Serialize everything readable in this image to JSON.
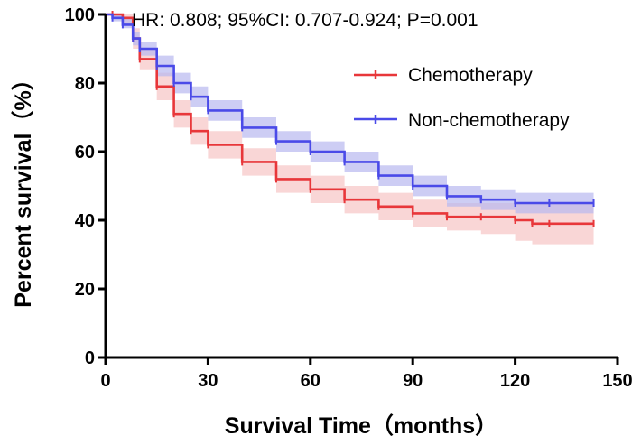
{
  "chart_data": {
    "type": "line",
    "annotation": "HR: 0.808; 95%CI: 0.707-0.924; P=0.001",
    "xlabel": "Survival Time（months）",
    "ylabel": "Percent survival（%）",
    "xlim": [
      0,
      150
    ],
    "ylim": [
      0,
      100
    ],
    "xticks": [
      0,
      30,
      60,
      90,
      120,
      150
    ],
    "yticks": [
      0,
      20,
      40,
      60,
      80,
      100
    ],
    "grid": false,
    "legend_position": "top-right",
    "series": [
      {
        "name": "Chemotherapy",
        "color": "#e8373a",
        "band_color": "#f7c4c4",
        "x": [
          0,
          2,
          5,
          8,
          10,
          15,
          20,
          25,
          30,
          40,
          50,
          60,
          70,
          80,
          90,
          100,
          110,
          120,
          125,
          130,
          143
        ],
        "y": [
          100,
          100,
          99,
          93,
          87,
          79,
          71,
          66,
          62,
          57,
          52,
          49,
          46,
          44,
          42,
          41,
          41,
          40,
          39,
          39,
          39
        ],
        "ci_lower": [
          100,
          99,
          97,
          90,
          84,
          75,
          67,
          62,
          58,
          53,
          48,
          45,
          42,
          40,
          38,
          37,
          36,
          34,
          33,
          33,
          33
        ],
        "ci_upper": [
          100,
          100,
          100,
          96,
          90,
          83,
          75,
          70,
          66,
          61,
          56,
          53,
          50,
          48,
          46,
          45,
          45,
          45,
          45,
          45,
          45
        ]
      },
      {
        "name": "Non-chemotherapy",
        "color": "#4a4ae8",
        "band_color": "#b8b8f0",
        "x": [
          0,
          2,
          5,
          8,
          10,
          15,
          20,
          25,
          30,
          40,
          50,
          60,
          70,
          80,
          90,
          100,
          110,
          120,
          130,
          143
        ],
        "y": [
          100,
          99,
          97,
          93,
          90,
          85,
          80,
          76,
          72,
          67,
          63,
          60,
          57,
          53,
          50,
          47,
          46,
          45,
          45,
          45
        ],
        "ci_lower": [
          100,
          98,
          96,
          91,
          88,
          82,
          77,
          73,
          69,
          64,
          60,
          57,
          54,
          50,
          47,
          44,
          43,
          42,
          42,
          42
        ],
        "ci_upper": [
          100,
          100,
          99,
          95,
          92,
          88,
          83,
          79,
          75,
          70,
          66,
          63,
          60,
          56,
          53,
          50,
          49,
          48,
          48,
          48
        ]
      }
    ]
  }
}
